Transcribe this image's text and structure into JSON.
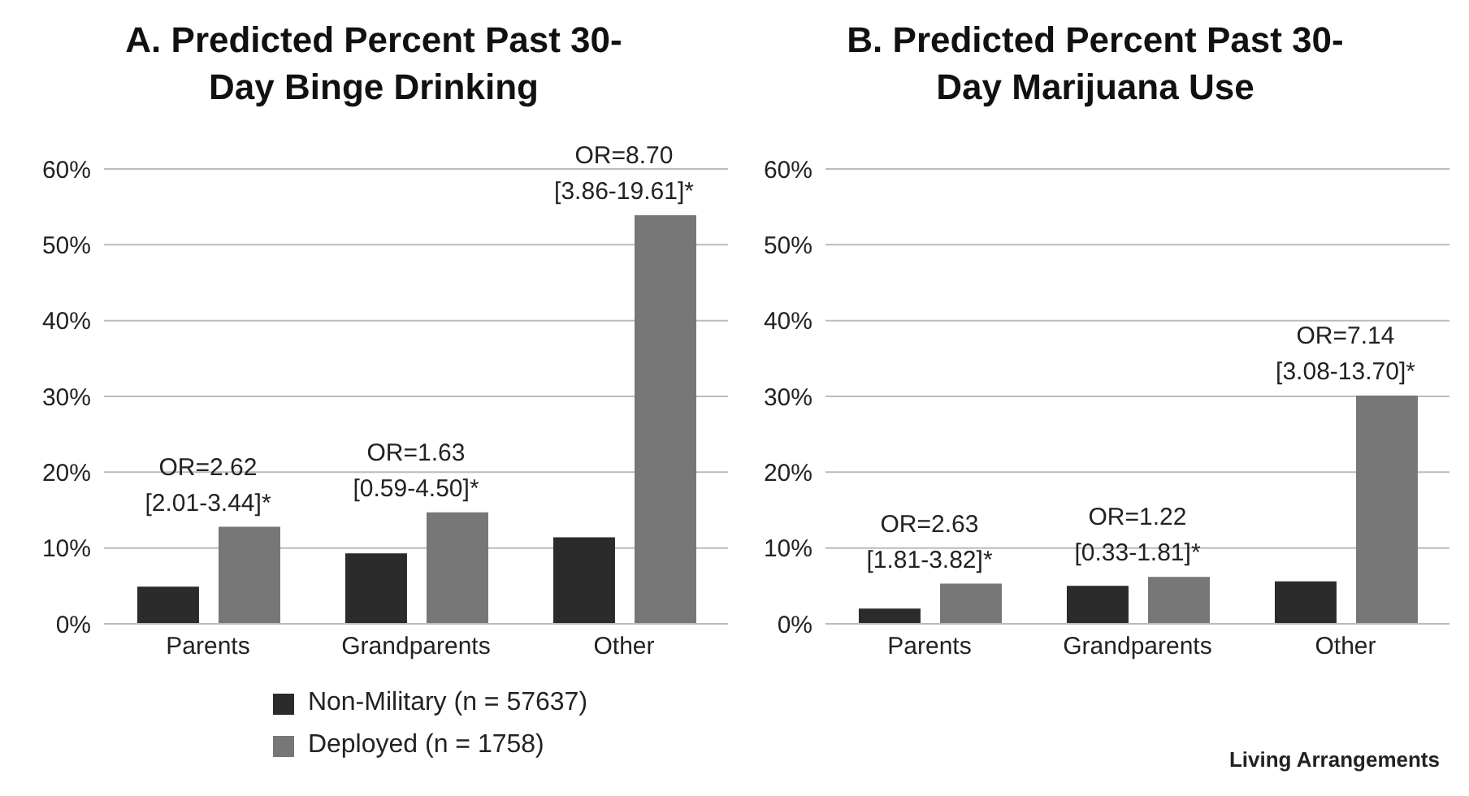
{
  "chart_data": [
    {
      "type": "bar",
      "title": "A. Predicted Percent Past 30-Day Binge Drinking",
      "categories": [
        "Parents",
        "Grandparents",
        "Other"
      ],
      "series": [
        {
          "name": "Non-Military (n = 57637)",
          "color": "#2b2b2b",
          "values": [
            4.9,
            9.3,
            11.4
          ]
        },
        {
          "name": "Deployed (n = 1758)",
          "color": "#777777",
          "values": [
            12.8,
            14.7,
            53.9
          ]
        }
      ],
      "ylim": [
        0,
        60
      ],
      "yticks": [
        {
          "value": 0,
          "label": "0%"
        },
        {
          "value": 10,
          "label": "10%"
        },
        {
          "value": 20,
          "label": "20%"
        },
        {
          "value": 30,
          "label": "30%"
        },
        {
          "value": 40,
          "label": "40%"
        },
        {
          "value": 50,
          "label": "50%"
        },
        {
          "value": 60,
          "label": "60%"
        }
      ],
      "grid": "y",
      "legend": "bottom",
      "annotations": [
        "OR=2.62\n[2.01-3.44]*",
        "OR=1.63\n[0.59-4.50]*",
        "OR=8.70\n[3.86-19.61]*"
      ]
    },
    {
      "type": "bar",
      "title": "B. Predicted Percent Past 30-Day Marijuana Use",
      "xlabel": "Living Arrangements",
      "categories": [
        "Parents",
        "Grandparents",
        "Other"
      ],
      "series": [
        {
          "color": "#2b2b2b",
          "values": [
            2.0,
            5.0,
            5.6
          ]
        },
        {
          "color": "#777777",
          "values": [
            5.3,
            6.2,
            30.1
          ]
        }
      ],
      "ylim": [
        0,
        60
      ],
      "yticks": [
        {
          "value": 0,
          "label": "0%"
        },
        {
          "value": 10,
          "label": "10%"
        },
        {
          "value": 20,
          "label": "20%"
        },
        {
          "value": 30,
          "label": "30%"
        },
        {
          "value": 40,
          "label": "40%"
        },
        {
          "value": 50,
          "label": "50%"
        },
        {
          "value": 60,
          "label": "60%"
        }
      ],
      "grid": "y",
      "annotations": [
        "OR=2.63\n[1.81-3.82]*",
        "OR=1.22\n[0.33-1.81]*",
        "OR=7.14\n[3.08-13.70]*"
      ]
    }
  ]
}
